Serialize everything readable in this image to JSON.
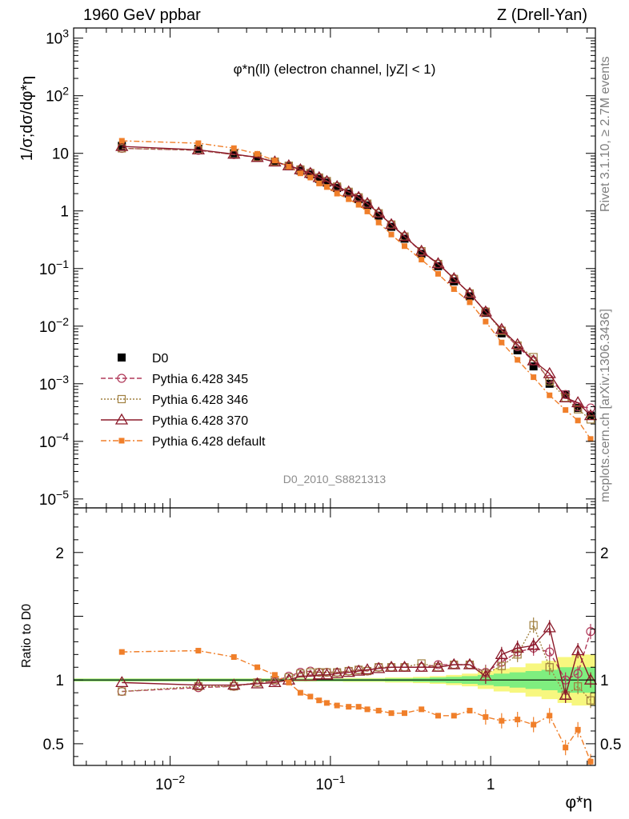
{
  "header": {
    "collision": "1960 GeV ppbar",
    "process": "Z (Drell-Yan)"
  },
  "side_labels": {
    "rivet": "Rivet 3.1.10, ≥ 2.7M events",
    "mcplots": "mcplots.cern.ch [arXiv:1306.3436]"
  },
  "chart_data": [
    {
      "type": "line",
      "panel": "main",
      "title": "φ*η(ll) (electron channel, |yZ| < 1)",
      "watermark": "D0_2010_S8821313",
      "xlabel": "φ*η",
      "ylabel": "1/σ;dσ/dφ*η",
      "xscale": "log",
      "yscale": "log",
      "xlim": [
        0.0025,
        4.5
      ],
      "ylim": [
        7e-06,
        1500
      ],
      "x_ticks": [
        {
          "value": 0.01,
          "label": "10⁻²"
        },
        {
          "value": 0.1,
          "label": "10⁻¹"
        },
        {
          "value": 1,
          "label": "1"
        }
      ],
      "y_ticks": [
        {
          "value": 1e-05,
          "label": "10⁻⁵"
        },
        {
          "value": 0.0001,
          "label": "10⁻⁴"
        },
        {
          "value": 0.001,
          "label": "10⁻³"
        },
        {
          "value": 0.01,
          "label": "10⁻²"
        },
        {
          "value": 0.1,
          "label": "10⁻¹"
        },
        {
          "value": 1,
          "label": "1"
        },
        {
          "value": 10,
          "label": "10"
        },
        {
          "value": 100,
          "label": "10²"
        },
        {
          "value": 1000,
          "label": "10³"
        }
      ],
      "legend_position": "bottom-left",
      "x": [
        0.005,
        0.015,
        0.025,
        0.035,
        0.045,
        0.055,
        0.065,
        0.075,
        0.085,
        0.095,
        0.11,
        0.13,
        0.15,
        0.17,
        0.2,
        0.24,
        0.29,
        0.37,
        0.47,
        0.59,
        0.74,
        0.93,
        1.17,
        1.47,
        1.85,
        2.33,
        2.93,
        3.5,
        4.2
      ],
      "series": [
        {
          "name": "D0",
          "color": "#000000",
          "marker": "filled-square",
          "line": "none",
          "values": [
            13.5,
            12,
            10,
            8.8,
            7.2,
            6,
            5,
            4.3,
            3.6,
            3.1,
            2.5,
            2,
            1.6,
            1.25,
            0.83,
            0.53,
            0.33,
            0.18,
            0.11,
            0.06,
            0.033,
            0.017,
            0.0075,
            0.0038,
            0.002,
            0.001,
            0.00065,
            0.00038,
            0.00028
          ]
        },
        {
          "name": "Pythia 6.428 345",
          "color": "#b03a5a",
          "marker": "open-circle",
          "line": "dashed",
          "values": [
            12.2,
            11.3,
            9.5,
            8.5,
            7.1,
            6.1,
            5.3,
            4.6,
            3.8,
            3.3,
            2.65,
            2.15,
            1.72,
            1.34,
            0.91,
            0.58,
            0.36,
            0.195,
            0.12,
            0.067,
            0.037,
            0.018,
            0.0085,
            0.0044,
            0.0025,
            0.0012,
            0.00065,
            0.0004,
            0.00038
          ]
        },
        {
          "name": "Pythia 6.428 346",
          "color": "#a08040",
          "marker": "open-square",
          "line": "dotted",
          "values": [
            12.2,
            11.4,
            9.5,
            8.6,
            7.2,
            6.1,
            5.25,
            4.55,
            3.8,
            3.3,
            2.65,
            2.15,
            1.72,
            1.34,
            0.91,
            0.58,
            0.36,
            0.2,
            0.12,
            0.066,
            0.037,
            0.0178,
            0.0083,
            0.0046,
            0.0029,
            0.0011,
            0.00057,
            0.00036,
            0.00024
          ]
        },
        {
          "name": "Pythia 6.428 370",
          "color": "#8b1a2a",
          "marker": "open-triangle",
          "line": "solid",
          "values": [
            13.2,
            11.5,
            9.7,
            8.5,
            7.1,
            6.1,
            5.2,
            4.5,
            3.8,
            3.25,
            2.65,
            2.15,
            1.72,
            1.35,
            0.92,
            0.58,
            0.36,
            0.2,
            0.122,
            0.067,
            0.037,
            0.0177,
            0.0088,
            0.0048,
            0.0025,
            0.0015,
            0.00057,
            0.00047,
            0.00028
          ]
        },
        {
          "name": "Pythia 6.428 default",
          "color": "#f07f2a",
          "marker": "filled-small-square",
          "line": "dashdot",
          "values": [
            16.5,
            15,
            12.3,
            9.8,
            7.5,
            5.9,
            4.5,
            3.8,
            3,
            2.6,
            2,
            1.6,
            1.28,
            0.98,
            0.63,
            0.39,
            0.245,
            0.143,
            0.081,
            0.044,
            0.026,
            0.012,
            0.0052,
            0.0026,
            0.0013,
            0.00063,
            0.00035,
            0.00023,
            0.00011
          ]
        }
      ]
    },
    {
      "type": "line",
      "panel": "ratio",
      "ylabel": "Ratio to D0",
      "xscale": "log",
      "yscale": "linear",
      "xlim": [
        0.0025,
        4.5
      ],
      "ylim": [
        0.33,
        2.35
      ],
      "y_ticks": [
        {
          "value": 0.5,
          "label": "0.5"
        },
        {
          "value": 1,
          "label": "1"
        },
        {
          "value": 2,
          "label": "2"
        }
      ],
      "x": [
        0.005,
        0.015,
        0.025,
        0.035,
        0.045,
        0.055,
        0.065,
        0.075,
        0.085,
        0.095,
        0.11,
        0.13,
        0.15,
        0.17,
        0.2,
        0.24,
        0.29,
        0.37,
        0.47,
        0.59,
        0.74,
        0.93,
        1.17,
        1.47,
        1.85,
        2.33,
        2.93,
        3.5,
        4.2
      ],
      "reference_band": {
        "stat_halfwidth": [
          0.01,
          0.01,
          0.01,
          0.01,
          0.01,
          0.01,
          0.01,
          0.01,
          0.01,
          0.01,
          0.01,
          0.01,
          0.01,
          0.01,
          0.01,
          0.012,
          0.012,
          0.015,
          0.02,
          0.025,
          0.03,
          0.04,
          0.05,
          0.06,
          0.07,
          0.08,
          0.1,
          0.1,
          0.1
        ],
        "total_halfwidth": [
          0.012,
          0.012,
          0.012,
          0.012,
          0.012,
          0.012,
          0.012,
          0.012,
          0.012,
          0.012,
          0.012,
          0.015,
          0.015,
          0.015,
          0.015,
          0.02,
          0.02,
          0.025,
          0.03,
          0.04,
          0.05,
          0.07,
          0.09,
          0.1,
          0.13,
          0.15,
          0.18,
          0.2,
          0.2
        ],
        "stat_color": "#7fee7f",
        "total_color": "#f7f77f",
        "center_color": "#000000"
      },
      "series": [
        {
          "name": "Pythia 6.428 345",
          "color": "#b03a5a",
          "marker": "open-circle",
          "line": "dashed",
          "values": [
            0.91,
            0.94,
            0.95,
            0.98,
            0.99,
            1.03,
            1.06,
            1.07,
            1.06,
            1.06,
            1.06,
            1.07,
            1.08,
            1.07,
            1.1,
            1.1,
            1.1,
            1.1,
            1.12,
            1.12,
            1.12,
            1.06,
            1.14,
            1.22,
            1.25,
            1.22,
            1,
            1.05,
            1.38
          ]
        },
        {
          "name": "Pythia 6.428 346",
          "color": "#a08040",
          "marker": "open-square",
          "line": "dotted",
          "values": [
            0.91,
            0.95,
            0.95,
            0.98,
            1.0,
            1.02,
            1.05,
            1.06,
            1.06,
            1.06,
            1.06,
            1.07,
            1.08,
            1.07,
            1.1,
            1.1,
            1.1,
            1.13,
            1.1,
            1.12,
            1.12,
            1.05,
            1.11,
            1.2,
            1.43,
            1.1,
            0.88,
            0.95,
            0.84
          ]
        },
        {
          "name": "Pythia 6.428 370",
          "color": "#8b1a2a",
          "marker": "open-triangle",
          "line": "solid",
          "values": [
            0.98,
            0.96,
            0.96,
            0.97,
            0.98,
            1.0,
            1.03,
            1.03,
            1.04,
            1.04,
            1.05,
            1.06,
            1.07,
            1.08,
            1.09,
            1.1,
            1.1,
            1.1,
            1.1,
            1.12,
            1.12,
            1.03,
            1.2,
            1.25,
            1.27,
            1.41,
            0.88,
            1.23,
            1.0
          ]
        },
        {
          "name": "Pythia 6.428 default",
          "color": "#f07f2a",
          "marker": "filled-small-square",
          "line": "dashdot",
          "values": [
            1.22,
            1.23,
            1.18,
            1.1,
            1.04,
            0.98,
            0.9,
            0.87,
            0.84,
            0.82,
            0.8,
            0.79,
            0.79,
            0.77,
            0.76,
            0.74,
            0.74,
            0.77,
            0.72,
            0.72,
            0.76,
            0.71,
            0.68,
            0.69,
            0.65,
            0.72,
            0.47,
            0.61,
            0.36
          ]
        }
      ]
    }
  ]
}
